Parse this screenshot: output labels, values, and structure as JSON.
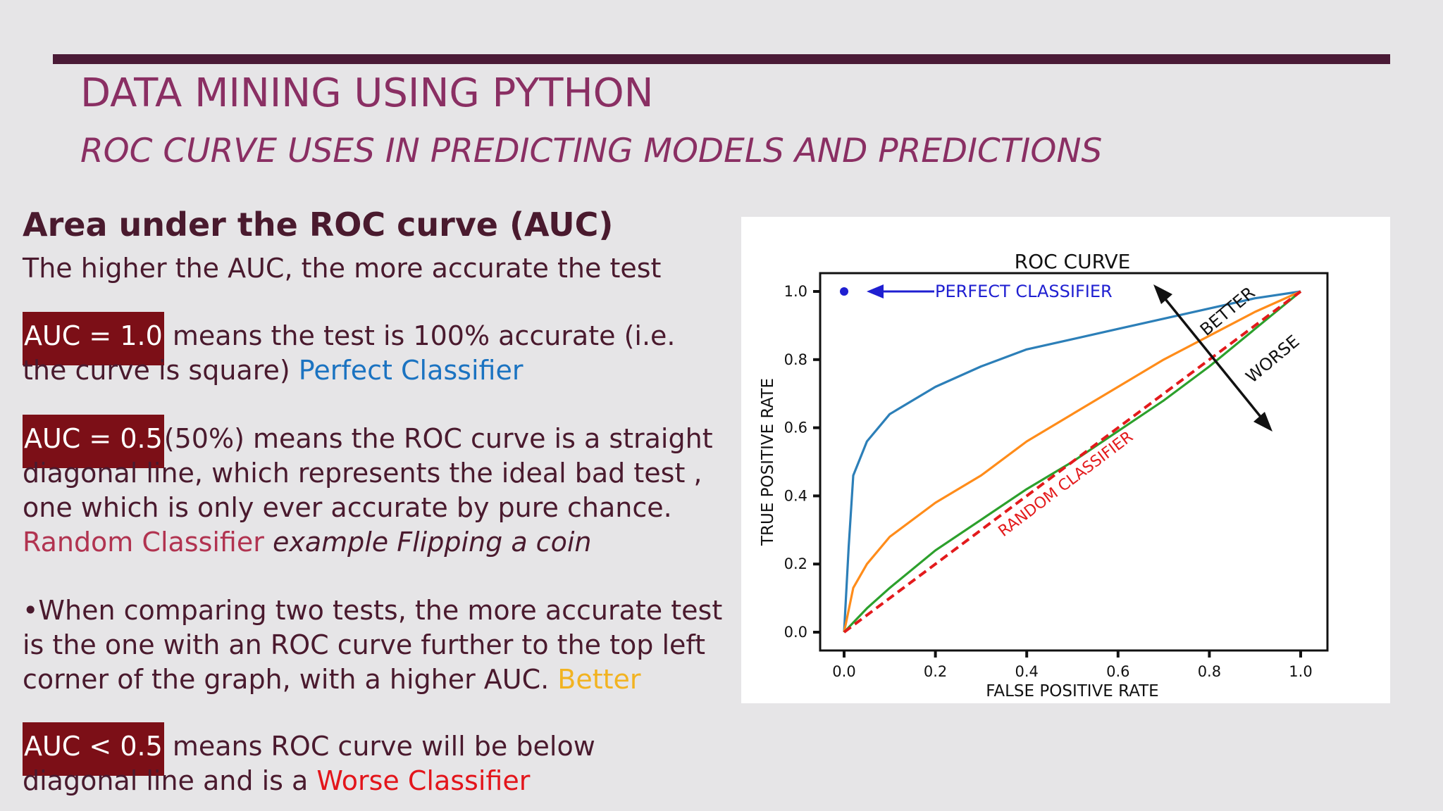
{
  "slide": {
    "title": "DATA MINING USING PYTHON",
    "subtitle": "ROC CURVE USES IN PREDICTING MODELS AND PREDICTIONS",
    "heading": "Area under the ROC curve (AUC)",
    "intro": "The higher the AUC, the more accurate the test",
    "p1": {
      "badge": "AUC = 1.0",
      "text": " means the test is 100% accurate (i.e. the curve is square)  ",
      "tag": "Perfect Classifier"
    },
    "p2": {
      "badge": "AUC = 0.5",
      "text": "(50%) means the ROC curve is a straight diagonal line, which represents the  ideal bad test , one which is only ever accurate by pure chance.  ",
      "tag": "Random Classifier",
      "example": " example  Flipping a coin"
    },
    "p3": {
      "text": "•When comparing two tests, the more accurate test is the one with an ROC curve further to the top left corner of the graph, with a higher AUC.  ",
      "tag": "Better"
    },
    "p4": {
      "badge": "AUC < 0.5",
      "text": " means ROC curve will be below diagonal line and is a ",
      "tag": "Worse Classifier"
    }
  },
  "colors": {
    "title": "#8a2f63",
    "rule": "#4a1a36",
    "body": "#4a1a2e",
    "badge_bg": "#7c0f17",
    "perfect": "#1b73c1",
    "random": "#b13350",
    "better": "#f2b321",
    "worse": "#e3151b"
  },
  "chart_data": {
    "type": "line",
    "title": "ROC CURVE",
    "xlabel": "FALSE POSITIVE RATE",
    "ylabel": "TRUE POSITIVE RATE",
    "xlim": [
      0.0,
      1.0
    ],
    "ylim": [
      0.0,
      1.0
    ],
    "xticks": [
      "0.0",
      "0.2",
      "0.4",
      "0.6",
      "0.8",
      "1.0"
    ],
    "yticks": [
      "0.0",
      "0.2",
      "0.4",
      "0.6",
      "0.8",
      "1.0"
    ],
    "grid": false,
    "series": [
      {
        "color": "#2c7fb8",
        "x": [
          0.0,
          0.01,
          0.02,
          0.05,
          0.1,
          0.2,
          0.3,
          0.4,
          0.5,
          0.6,
          0.7,
          0.8,
          0.9,
          1.0
        ],
        "y": [
          0.0,
          0.25,
          0.46,
          0.56,
          0.64,
          0.72,
          0.78,
          0.83,
          0.86,
          0.89,
          0.92,
          0.95,
          0.98,
          1.0
        ]
      },
      {
        "color": "#ff8c1a",
        "x": [
          0.0,
          0.02,
          0.05,
          0.1,
          0.2,
          0.3,
          0.4,
          0.5,
          0.6,
          0.7,
          0.8,
          0.9,
          1.0
        ],
        "y": [
          0.0,
          0.13,
          0.2,
          0.28,
          0.38,
          0.46,
          0.56,
          0.64,
          0.72,
          0.8,
          0.87,
          0.94,
          1.0
        ]
      },
      {
        "color": "#2ca02c",
        "x": [
          0.0,
          0.05,
          0.1,
          0.2,
          0.3,
          0.4,
          0.5,
          0.6,
          0.7,
          0.8,
          0.9,
          1.0
        ],
        "y": [
          0.0,
          0.07,
          0.13,
          0.24,
          0.33,
          0.42,
          0.5,
          0.59,
          0.68,
          0.78,
          0.89,
          1.0
        ]
      },
      {
        "name": "RANDOM CLASSIFIER",
        "color": "#e31a1c",
        "style": "dashed",
        "x": [
          0.0,
          1.0
        ],
        "y": [
          0.0,
          1.0
        ]
      }
    ],
    "point": {
      "label": "PERFECT CLASSIFIER",
      "x": 0.0,
      "y": 1.0,
      "color": "#1f1fd1"
    },
    "annotations": [
      "BETTER",
      "WORSE"
    ]
  }
}
